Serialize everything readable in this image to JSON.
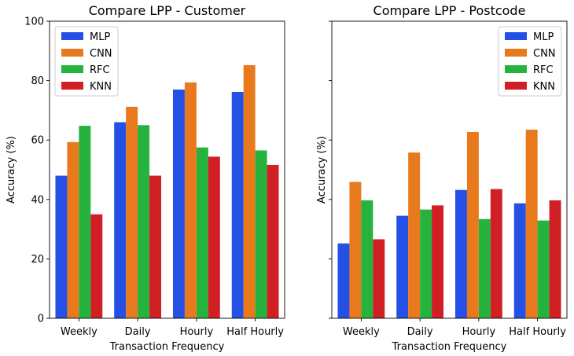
{
  "chart_data": [
    {
      "type": "bar",
      "title": "Compare LPP - Customer",
      "xlabel": "Transaction Frequency",
      "ylabel": "Accuracy (%)",
      "ylim": [
        0,
        100
      ],
      "yticks": [
        0,
        20,
        40,
        60,
        80,
        100
      ],
      "show_ytick_labels": true,
      "legend_position": "top-left",
      "categories": [
        "Weekly",
        "Daily",
        "Hourly",
        "Half Hourly"
      ],
      "series": [
        {
          "name": "MLP",
          "color": "#2550e6",
          "values": [
            48,
            66,
            77,
            76.2
          ]
        },
        {
          "name": "CNN",
          "color": "#e8791d",
          "values": [
            59.3,
            71.2,
            79.4,
            85.2
          ]
        },
        {
          "name": "RFC",
          "color": "#25b33e",
          "values": [
            64.8,
            65,
            57.5,
            56.5
          ]
        },
        {
          "name": "KNN",
          "color": "#d11f26",
          "values": [
            35,
            48,
            54.4,
            51.6
          ]
        }
      ]
    },
    {
      "type": "bar",
      "title": "Compare LPP - Postcode",
      "xlabel": "Transaction Frequency",
      "ylabel": "Accuracy (%)",
      "ylim": [
        0,
        100
      ],
      "yticks": [
        0,
        20,
        40,
        60,
        80,
        100
      ],
      "show_ytick_labels": false,
      "legend_position": "top-right",
      "categories": [
        "Weekly",
        "Daily",
        "Hourly",
        "Half Hourly"
      ],
      "series": [
        {
          "name": "MLP",
          "color": "#2550e6",
          "values": [
            25.2,
            34.5,
            43.2,
            38.7
          ]
        },
        {
          "name": "CNN",
          "color": "#e8791d",
          "values": [
            45.9,
            55.8,
            62.7,
            63.5
          ]
        },
        {
          "name": "RFC",
          "color": "#25b33e",
          "values": [
            39.7,
            36.6,
            33.4,
            32.9
          ]
        },
        {
          "name": "KNN",
          "color": "#d11f26",
          "values": [
            26.6,
            38,
            43.5,
            39.7
          ]
        }
      ]
    }
  ]
}
